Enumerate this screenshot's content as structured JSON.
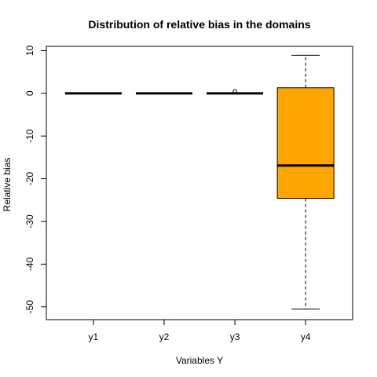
{
  "chart_data": {
    "type": "boxplot",
    "title": "Distribution of relative bias in the domains",
    "xlabel": "Variables Y",
    "ylabel": "Relative bias",
    "ylim": [
      -53,
      11
    ],
    "yticks": [
      10,
      0,
      -10,
      -20,
      -30,
      -40,
      -50
    ],
    "categories": [
      "y1",
      "y2",
      "y3",
      "y4"
    ],
    "boxes": [
      {
        "name": "y1",
        "min": 0,
        "q1": 0,
        "median": 0,
        "q3": 0,
        "max": 0,
        "outliers": [],
        "fill": "#ffffff"
      },
      {
        "name": "y2",
        "min": 0,
        "q1": 0,
        "median": 0,
        "q3": 0,
        "max": 0,
        "outliers": [],
        "fill": "#ffffff"
      },
      {
        "name": "y3",
        "min": 0,
        "q1": 0,
        "median": 0,
        "q3": 0,
        "max": 0,
        "outliers": [
          0.3
        ],
        "fill": "#ffffff"
      },
      {
        "name": "y4",
        "min": -50.5,
        "q1": -24.6,
        "median": -16.9,
        "q3": 1.3,
        "max": 8.9,
        "outliers": [],
        "fill": "#ffa500"
      }
    ]
  }
}
